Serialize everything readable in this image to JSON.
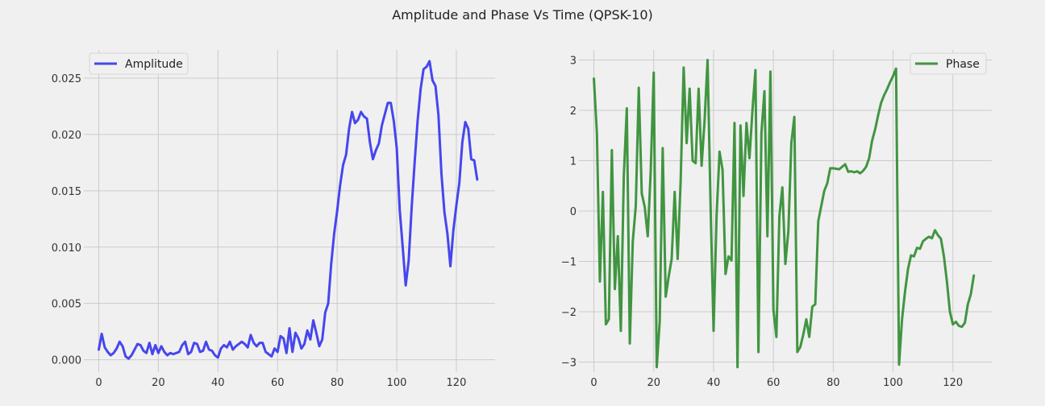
{
  "figure": {
    "title": "Amplitude and Phase Vs Time (QPSK-10)"
  },
  "colors": {
    "background": "#f0f0f0",
    "grid": "#cbcbcb",
    "amplitude": "#3333ee",
    "phase": "#2e8b2e",
    "text": "#333333"
  },
  "chart_data": [
    {
      "type": "line",
      "title": "",
      "xlabel": "",
      "ylabel": "",
      "grid": true,
      "legend_position": "top-left",
      "xlim": [
        -5,
        133
      ],
      "ylim": [
        -0.0011,
        0.0275
      ],
      "x_ticks": [
        0,
        20,
        40,
        60,
        80,
        100,
        120
      ],
      "y_ticks": [
        0.0,
        0.005,
        0.01,
        0.015,
        0.02,
        0.025
      ],
      "x_tick_labels": [
        "0",
        "20",
        "40",
        "60",
        "80",
        "100",
        "120"
      ],
      "y_tick_labels": [
        "0.000",
        "0.005",
        "0.010",
        "0.015",
        "0.020",
        "0.025"
      ],
      "x_start": 0,
      "series": [
        {
          "name": "Amplitude",
          "color": "#3333ee",
          "values": [
            0.0009,
            0.0023,
            0.0011,
            0.0007,
            0.0004,
            0.0006,
            0.001,
            0.0016,
            0.0012,
            0.0003,
            0.0001,
            0.0004,
            0.0009,
            0.0014,
            0.0013,
            0.0008,
            0.0006,
            0.0015,
            0.0005,
            0.0013,
            0.0006,
            0.0012,
            0.0007,
            0.0004,
            0.0006,
            0.0005,
            0.0006,
            0.0007,
            0.0013,
            0.0016,
            0.0005,
            0.0007,
            0.0015,
            0.0014,
            0.0007,
            0.0008,
            0.0016,
            0.0009,
            0.0008,
            0.0004,
            0.0002,
            0.001,
            0.0013,
            0.0011,
            0.0016,
            0.0009,
            0.0012,
            0.0014,
            0.0016,
            0.0014,
            0.0011,
            0.0022,
            0.0015,
            0.0012,
            0.0015,
            0.0015,
            0.0007,
            0.0005,
            0.0003,
            0.001,
            0.0007,
            0.0021,
            0.0019,
            0.0006,
            0.0028,
            0.0007,
            0.0024,
            0.0019,
            0.001,
            0.0014,
            0.0026,
            0.0018,
            0.0035,
            0.0024,
            0.0012,
            0.0018,
            0.0042,
            0.005,
            0.0085,
            0.0112,
            0.0132,
            0.0155,
            0.0173,
            0.0182,
            0.0205,
            0.022,
            0.021,
            0.0213,
            0.022,
            0.0216,
            0.0214,
            0.0193,
            0.0178,
            0.0186,
            0.0192,
            0.0208,
            0.0218,
            0.0228,
            0.0228,
            0.0212,
            0.0188,
            0.0133,
            0.01,
            0.0066,
            0.0088,
            0.0135,
            0.0175,
            0.0212,
            0.024,
            0.0258,
            0.026,
            0.0265,
            0.0248,
            0.0243,
            0.0217,
            0.0165,
            0.0131,
            0.0112,
            0.0083,
            0.0115,
            0.0137,
            0.0157,
            0.0193,
            0.0211,
            0.0205,
            0.0178,
            0.0177,
            0.016
          ]
        }
      ]
    },
    {
      "type": "line",
      "title": "",
      "xlabel": "",
      "ylabel": "",
      "grid": true,
      "legend_position": "top-right",
      "xlim": [
        -5,
        133
      ],
      "ylim": [
        -3.2,
        3.2
      ],
      "x_ticks": [
        0,
        20,
        40,
        60,
        80,
        100,
        120
      ],
      "y_ticks": [
        -3,
        -2,
        -1,
        0,
        1,
        2,
        3
      ],
      "x_tick_labels": [
        "0",
        "20",
        "40",
        "60",
        "80",
        "100",
        "120"
      ],
      "y_tick_labels": [
        "−3",
        "−2",
        "−1",
        "0",
        "1",
        "2",
        "3"
      ],
      "x_start": 0,
      "series": [
        {
          "name": "Phase",
          "color": "#2e8b2e",
          "values": [
            2.63,
            1.55,
            -1.4,
            0.38,
            -2.25,
            -2.15,
            1.21,
            -1.55,
            -0.5,
            -2.38,
            0.7,
            2.04,
            -2.63,
            -0.6,
            0.1,
            2.45,
            0.35,
            0.08,
            -0.5,
            0.8,
            2.75,
            -3.1,
            -2.2,
            1.25,
            -1.7,
            -1.3,
            -0.95,
            0.38,
            -0.95,
            0.6,
            2.85,
            1.35,
            2.43,
            1.0,
            0.95,
            2.43,
            0.9,
            1.8,
            3.0,
            0.1,
            -2.38,
            -0.1,
            1.18,
            0.82,
            -1.25,
            -0.9,
            -0.98,
            1.75,
            -3.1,
            1.7,
            0.3,
            1.75,
            1.05,
            2.0,
            2.8,
            -2.8,
            1.55,
            2.38,
            -0.5,
            2.77,
            -1.95,
            -2.5,
            -0.1,
            0.47,
            -1.05,
            -0.4,
            1.35,
            1.87,
            -2.8,
            -2.7,
            -2.45,
            -2.15,
            -2.5,
            -1.9,
            -1.85,
            -0.2,
            0.1,
            0.4,
            0.55,
            0.85,
            0.85,
            0.84,
            0.83,
            0.88,
            0.93,
            0.78,
            0.79,
            0.77,
            0.79,
            0.75,
            0.8,
            0.88,
            1.05,
            1.4,
            1.62,
            1.9,
            2.15,
            2.3,
            2.42,
            2.56,
            2.68,
            2.83,
            -3.05,
            -2.15,
            -1.6,
            -1.15,
            -0.88,
            -0.9,
            -0.73,
            -0.75,
            -0.6,
            -0.55,
            -0.51,
            -0.54,
            -0.38,
            -0.48,
            -0.55,
            -0.9,
            -1.4,
            -2.0,
            -2.25,
            -2.2,
            -2.28,
            -2.3,
            -2.22,
            -1.85,
            -1.65,
            -1.28
          ]
        }
      ]
    }
  ]
}
